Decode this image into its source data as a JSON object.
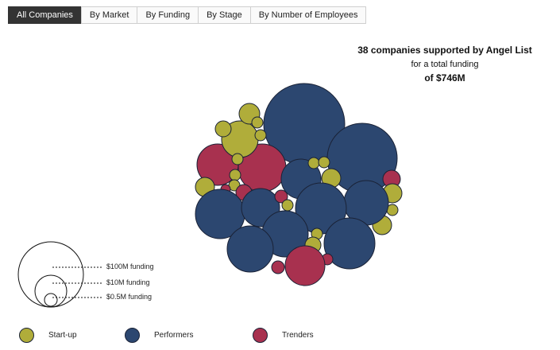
{
  "tabs": [
    {
      "label": "All Companies",
      "active": true
    },
    {
      "label": "By Market",
      "active": false
    },
    {
      "label": "By Funding",
      "active": false
    },
    {
      "label": "By Stage",
      "active": false
    },
    {
      "label": "By Number of Employees",
      "active": false
    }
  ],
  "summary": {
    "line1": "38 companies supported by Angel List",
    "line2": "for a total funding",
    "line3": "of $746M"
  },
  "size_legend": [
    {
      "label": "$100M funding"
    },
    {
      "label": "$10M funding"
    },
    {
      "label": "$0.5M funding"
    }
  ],
  "legend": [
    {
      "key": "startup",
      "label": "Start-up",
      "color": "#b0ad3a"
    },
    {
      "key": "performers",
      "label": "Performers",
      "color": "#2c4770"
    },
    {
      "key": "trenders",
      "label": "Trenders",
      "color": "#a8314f"
    }
  ],
  "colors": {
    "startup": "#b0ad3a",
    "performers": "#2c4770",
    "trenders": "#a8314f",
    "stroke": "#1a2236"
  }
}
